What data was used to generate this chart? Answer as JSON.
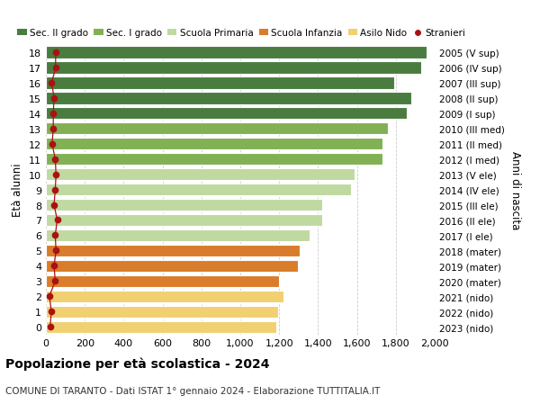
{
  "ages": [
    18,
    17,
    16,
    15,
    14,
    13,
    12,
    11,
    10,
    9,
    8,
    7,
    6,
    5,
    4,
    3,
    2,
    1,
    0
  ],
  "right_labels": [
    "2005 (V sup)",
    "2006 (IV sup)",
    "2007 (III sup)",
    "2008 (II sup)",
    "2009 (I sup)",
    "2010 (III med)",
    "2011 (II med)",
    "2012 (I med)",
    "2013 (V ele)",
    "2014 (IV ele)",
    "2015 (III ele)",
    "2016 (II ele)",
    "2017 (I ele)",
    "2018 (mater)",
    "2019 (mater)",
    "2020 (mater)",
    "2021 (nido)",
    "2022 (nido)",
    "2023 (nido)"
  ],
  "bar_values": [
    1960,
    1930,
    1790,
    1880,
    1855,
    1760,
    1730,
    1730,
    1590,
    1570,
    1420,
    1420,
    1355,
    1305,
    1295,
    1200,
    1220,
    1195,
    1185
  ],
  "bar_colors": [
    "#4a7c40",
    "#4a7c40",
    "#4a7c40",
    "#4a7c40",
    "#4a7c40",
    "#82b055",
    "#82b055",
    "#82b055",
    "#bfd9a0",
    "#bfd9a0",
    "#bfd9a0",
    "#bfd9a0",
    "#bfd9a0",
    "#d97c2b",
    "#d97c2b",
    "#d97c2b",
    "#f0d070",
    "#f0d070",
    "#f0d070"
  ],
  "stranieri_values": [
    50,
    50,
    30,
    42,
    38,
    38,
    32,
    48,
    52,
    48,
    42,
    58,
    48,
    52,
    42,
    48,
    18,
    28,
    22
  ],
  "legend_labels": [
    "Sec. II grado",
    "Sec. I grado",
    "Scuola Primaria",
    "Scuola Infanzia",
    "Asilo Nido",
    "Stranieri"
  ],
  "legend_colors": [
    "#4a7c40",
    "#82b055",
    "#bfd9a0",
    "#d97c2b",
    "#f0d070",
    "#aa1111"
  ],
  "ylabel_left": "Età alunni",
  "ylabel_right": "Anni di nascita",
  "xlim": [
    0,
    2000
  ],
  "xticks": [
    0,
    200,
    400,
    600,
    800,
    1000,
    1200,
    1400,
    1600,
    1800,
    2000
  ],
  "xtick_labels": [
    "0",
    "200",
    "400",
    "600",
    "800",
    "1,000",
    "1,200",
    "1,400",
    "1,600",
    "1,800",
    "2,000"
  ],
  "title": "Popolazione per età scolastica - 2024",
  "subtitle": "COMUNE DI TARANTO - Dati ISTAT 1° gennaio 2024 - Elaborazione TUTTITALIA.IT",
  "background_color": "#ffffff",
  "grid_color": "#cccccc"
}
